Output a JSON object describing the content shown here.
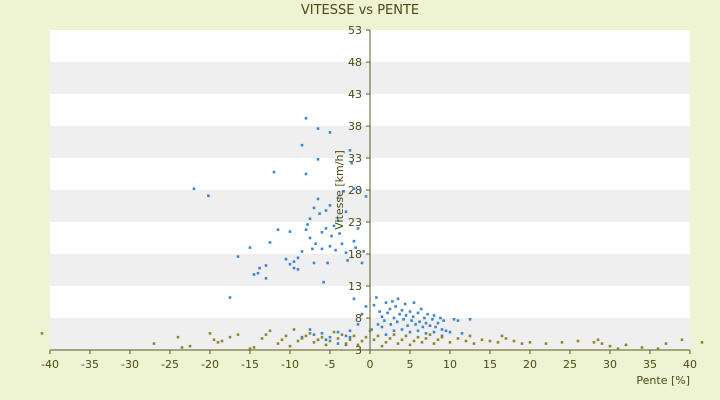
{
  "chart_data": {
    "type": "scatter",
    "title": "VITESSE vs PENTE",
    "xlabel": "Pente [%]",
    "ylabel": "Vitesse [km/h]",
    "xlim": [
      -40,
      40
    ],
    "ylim": [
      3,
      53
    ],
    "x_ticks": [
      -40,
      -35,
      -30,
      -25,
      -20,
      -15,
      -10,
      -5,
      0,
      5,
      10,
      15,
      20,
      25,
      30,
      35,
      40
    ],
    "y_ticks": [
      3,
      8,
      13,
      18,
      23,
      28,
      33,
      38,
      43,
      48,
      53
    ],
    "grid": "horizontal alternating bands",
    "legend": "none",
    "colors": {
      "page_background": "#eef3d4",
      "band_white": "#ffffff",
      "band_gray": "#efefef",
      "axis": "#5a5a1e",
      "text": "#4a4a14",
      "series_blue": "#3b86d4",
      "series_olive": "#8a8a2a"
    },
    "series": [
      {
        "color": "#3b86d4",
        "points": [
          [
            -22,
            28.2
          ],
          [
            -20.2,
            27.1
          ],
          [
            -16.5,
            17.6
          ],
          [
            -15,
            19
          ],
          [
            -17.5,
            11.2
          ],
          [
            -14.5,
            14.8
          ],
          [
            -14,
            15
          ],
          [
            -13.8,
            15.8
          ],
          [
            -13,
            14.2
          ],
          [
            -13,
            16.2
          ],
          [
            -12.5,
            19.8
          ],
          [
            -12,
            30.8
          ],
          [
            -11.5,
            21.8
          ],
          [
            -10.5,
            17.2
          ],
          [
            -10,
            16.4
          ],
          [
            -10,
            21.5
          ],
          [
            -9.5,
            15.8
          ],
          [
            -9.5,
            16.8
          ],
          [
            -9,
            17.4
          ],
          [
            -9,
            15.6
          ],
          [
            -8.5,
            18.4
          ],
          [
            -8,
            39.2
          ],
          [
            -8.5,
            35
          ],
          [
            -8,
            30.5
          ],
          [
            -8,
            21.8
          ],
          [
            -7.8,
            22.6
          ],
          [
            -7.5,
            23.5
          ],
          [
            -7.5,
            20.5
          ],
          [
            -7.2,
            18.8
          ],
          [
            -7,
            16.6
          ],
          [
            -7,
            25.2
          ],
          [
            -6.8,
            19.6
          ],
          [
            -6.5,
            26.6
          ],
          [
            -6.5,
            32.8
          ],
          [
            -6.5,
            37.6
          ],
          [
            -6.3,
            24.3
          ],
          [
            -6,
            18.8
          ],
          [
            -6,
            21.4
          ],
          [
            -5.8,
            13.6
          ],
          [
            -5.5,
            22
          ],
          [
            -5.5,
            24.8
          ],
          [
            -5.3,
            16.6
          ],
          [
            -5,
            19.2
          ],
          [
            -5,
            25.6
          ],
          [
            -5,
            37
          ],
          [
            -4.8,
            20.8
          ],
          [
            -4.5,
            22.4
          ],
          [
            -4.3,
            18.6
          ],
          [
            -4,
            26.8
          ],
          [
            -4,
            23.2
          ],
          [
            -3.8,
            21.2
          ],
          [
            -3.5,
            19.6
          ],
          [
            -3.3,
            27.8
          ],
          [
            -3,
            18.2
          ],
          [
            -3,
            24.6
          ],
          [
            -2.8,
            17
          ],
          [
            -2.5,
            34.2
          ],
          [
            -2.3,
            32.2
          ],
          [
            -2,
            20
          ],
          [
            -2,
            28.2
          ],
          [
            -1.8,
            19
          ],
          [
            -1.5,
            22
          ],
          [
            -1.2,
            28
          ],
          [
            -1,
            16.6
          ],
          [
            -0.8,
            18.4
          ],
          [
            -0.5,
            27
          ],
          [
            -1.5,
            7
          ],
          [
            -1,
            8.6
          ],
          [
            -0.5,
            9.8
          ],
          [
            -2,
            11
          ],
          [
            -2.5,
            6
          ],
          [
            -3,
            5.2
          ],
          [
            -4,
            5.8
          ],
          [
            -5,
            5
          ],
          [
            -6,
            5.6
          ],
          [
            -7,
            5.4
          ],
          [
            -7.5,
            6.2
          ],
          [
            -8.5,
            5
          ],
          [
            -2.5,
            5
          ],
          [
            0.2,
            6.2
          ],
          [
            0.5,
            10
          ],
          [
            0.8,
            11.2
          ],
          [
            1,
            7
          ],
          [
            1.2,
            9
          ],
          [
            1.5,
            8.2
          ],
          [
            1.8,
            7.6
          ],
          [
            2,
            10.4
          ],
          [
            2.2,
            8.8
          ],
          [
            2.5,
            9.4
          ],
          [
            2.6,
            7
          ],
          [
            2.8,
            10.6
          ],
          [
            3,
            8
          ],
          [
            3.2,
            9.8
          ],
          [
            3.4,
            7.4
          ],
          [
            3.5,
            11
          ],
          [
            3.7,
            8.6
          ],
          [
            4,
            9.2
          ],
          [
            4.2,
            7.8
          ],
          [
            4.4,
            10.2
          ],
          [
            4.5,
            8.4
          ],
          [
            4.7,
            6.8
          ],
          [
            5,
            9
          ],
          [
            5.2,
            7.6
          ],
          [
            5.4,
            8.2
          ],
          [
            5.5,
            10.4
          ],
          [
            5.7,
            7
          ],
          [
            6,
            8.8
          ],
          [
            6.2,
            7.4
          ],
          [
            6.4,
            9.4
          ],
          [
            6.6,
            6.6
          ],
          [
            6.8,
            8
          ],
          [
            7,
            7.2
          ],
          [
            7.2,
            8.6
          ],
          [
            7.5,
            6.8
          ],
          [
            7.8,
            7.8
          ],
          [
            8,
            8.4
          ],
          [
            8.2,
            6.6
          ],
          [
            8.5,
            7.2
          ],
          [
            8.8,
            8
          ],
          [
            9,
            6.2
          ],
          [
            9.2,
            7.6
          ],
          [
            9.5,
            6
          ],
          [
            10,
            5.8
          ],
          [
            10.5,
            7.8
          ],
          [
            11,
            7.6
          ],
          [
            11.5,
            5.6
          ],
          [
            12.5,
            7.8
          ],
          [
            3,
            6
          ],
          [
            4,
            6.2
          ],
          [
            5,
            5.8
          ],
          [
            6,
            6
          ],
          [
            7,
            5.6
          ],
          [
            8,
            5.8
          ],
          [
            9,
            5.2
          ],
          [
            2,
            5.4
          ],
          [
            1.5,
            6.6
          ],
          [
            -4,
            4
          ],
          [
            -3,
            3.8
          ],
          [
            -6.5,
            4.6
          ],
          [
            -5.5,
            4.6
          ]
        ]
      },
      {
        "color": "#8a8a2a",
        "points": [
          [
            -41,
            5.6
          ],
          [
            -27,
            4
          ],
          [
            -24,
            5
          ],
          [
            -23.5,
            3.4
          ],
          [
            -22.5,
            3.6
          ],
          [
            -20,
            5.6
          ],
          [
            -19.5,
            4.6
          ],
          [
            -19,
            4.2
          ],
          [
            -18.5,
            4.4
          ],
          [
            -17.5,
            5
          ],
          [
            -16.5,
            5.4
          ],
          [
            -15,
            3.2
          ],
          [
            -14.5,
            3.4
          ],
          [
            -13.5,
            4.8
          ],
          [
            -13,
            5.4
          ],
          [
            -12.5,
            6
          ],
          [
            -11.5,
            4
          ],
          [
            -11,
            4.6
          ],
          [
            -10.5,
            5.2
          ],
          [
            -10,
            3.6
          ],
          [
            -9.5,
            6.2
          ],
          [
            -9,
            4.4
          ],
          [
            -8.5,
            4.8
          ],
          [
            -8,
            5.2
          ],
          [
            -7.5,
            5.6
          ],
          [
            -7,
            4.2
          ],
          [
            -6.5,
            4.6
          ],
          [
            -6,
            5
          ],
          [
            -5.5,
            3.8
          ],
          [
            -5,
            4.4
          ],
          [
            -4.5,
            5.8
          ],
          [
            -4,
            4.8
          ],
          [
            -3.5,
            5.4
          ],
          [
            -3,
            4
          ],
          [
            -2.5,
            4.6
          ],
          [
            -2,
            5.2
          ],
          [
            -1.5,
            3.8
          ],
          [
            -1,
            4.4
          ],
          [
            -0.5,
            5
          ],
          [
            0,
            6
          ],
          [
            0.5,
            4.6
          ],
          [
            1,
            5.2
          ],
          [
            1.5,
            3.6
          ],
          [
            2,
            4.2
          ],
          [
            2.5,
            4.8
          ],
          [
            3,
            5.4
          ],
          [
            3.5,
            4
          ],
          [
            4,
            4.6
          ],
          [
            4.5,
            5.2
          ],
          [
            5,
            3.8
          ],
          [
            5.5,
            4.4
          ],
          [
            6,
            5
          ],
          [
            6.5,
            4.2
          ],
          [
            7,
            4.8
          ],
          [
            7.5,
            5.4
          ],
          [
            8,
            4
          ],
          [
            8.5,
            4.6
          ],
          [
            9,
            5
          ],
          [
            10,
            4.2
          ],
          [
            11,
            4.8
          ],
          [
            12,
            4.4
          ],
          [
            12.5,
            5.2
          ],
          [
            13,
            4
          ],
          [
            14,
            4.6
          ],
          [
            15,
            4.4
          ],
          [
            16,
            4.2
          ],
          [
            16.5,
            5.2
          ],
          [
            17,
            4.8
          ],
          [
            18,
            4.4
          ],
          [
            19,
            4
          ],
          [
            20,
            4.2
          ],
          [
            22,
            4
          ],
          [
            24,
            4.2
          ],
          [
            26,
            4.4
          ],
          [
            28,
            4.2
          ],
          [
            28.5,
            4.6
          ],
          [
            29,
            4
          ],
          [
            30,
            3.6
          ],
          [
            31,
            3.2
          ],
          [
            32,
            3.8
          ],
          [
            34,
            3.4
          ],
          [
            36,
            3.2
          ],
          [
            37,
            4
          ],
          [
            39,
            4.6
          ],
          [
            41.5,
            4.2
          ]
        ]
      }
    ]
  }
}
